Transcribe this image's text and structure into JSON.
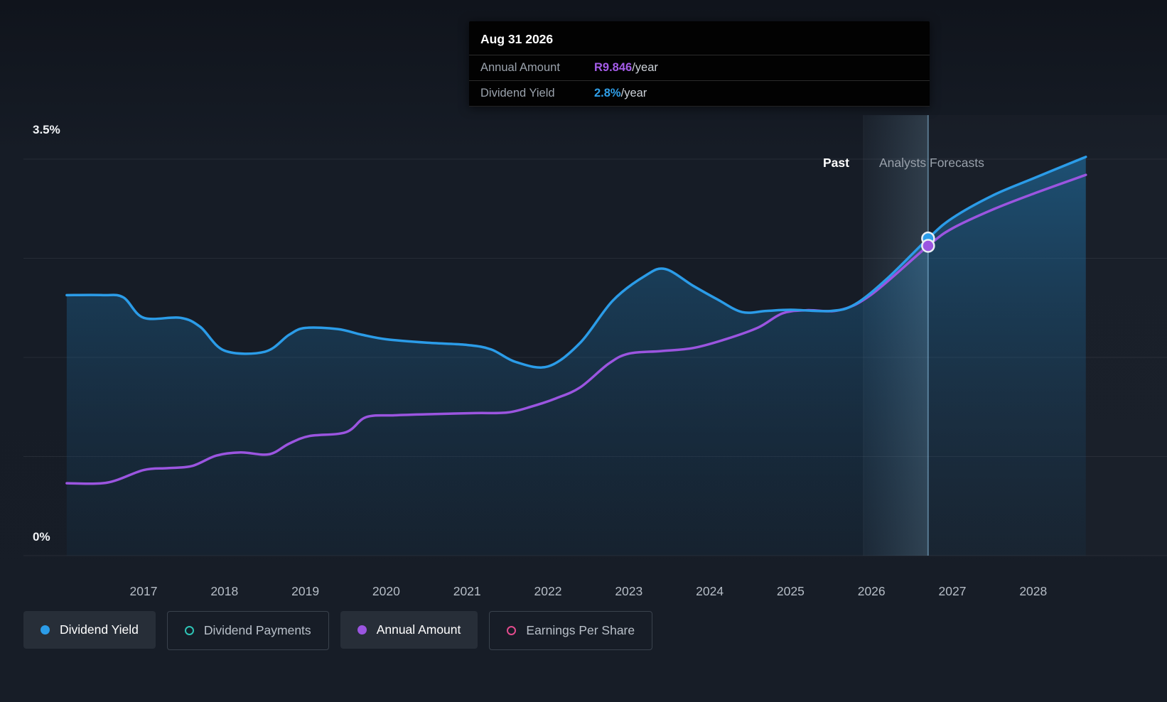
{
  "tooltip": {
    "date": "Aug 31 2026",
    "rows": [
      {
        "label": "Annual Amount",
        "value": "R9.846",
        "suffix": "/year",
        "color": "#a45ce8"
      },
      {
        "label": "Dividend Yield",
        "value": "2.8%",
        "suffix": "/year",
        "color": "#2f9fe8"
      }
    ]
  },
  "annotations": {
    "past": "Past",
    "forecast": "Analysts Forecasts"
  },
  "axes": {
    "y_top": "3.5%",
    "y_bottom": "0%"
  },
  "legend": [
    {
      "label": "Dividend Yield",
      "color": "#2b9ce8",
      "filled_marker": true,
      "filled_pill": true
    },
    {
      "label": "Dividend Payments",
      "color": "#2ec4b6",
      "filled_marker": false,
      "filled_pill": false
    },
    {
      "label": "Annual Amount",
      "color": "#9b55e0",
      "filled_marker": true,
      "filled_pill": true
    },
    {
      "label": "Earnings Per Share",
      "color": "#e24b8d",
      "filled_marker": false,
      "filled_pill": false
    }
  ],
  "chart_data": {
    "type": "line",
    "x_ticks": [
      2017,
      2018,
      2019,
      2020,
      2021,
      2022,
      2023,
      2024,
      2025,
      2026,
      2027,
      2028
    ],
    "ylim": [
      0,
      3.5
    ],
    "y2lim": [
      0,
      12.6
    ],
    "grid_ticks": [
      0,
      0.875,
      1.75,
      2.625,
      3.5
    ],
    "past_end_x": 2025.9,
    "marker_x": 2026.7,
    "series": [
      {
        "name": "Dividend Yield",
        "unit": "%",
        "axis": "y",
        "color": "#2b9ce8",
        "area": true,
        "points": [
          [
            2016.05,
            2.3
          ],
          [
            2016.5,
            2.3
          ],
          [
            2016.75,
            2.28
          ],
          [
            2017.0,
            2.1
          ],
          [
            2017.45,
            2.1
          ],
          [
            2017.7,
            2.02
          ],
          [
            2018.0,
            1.81
          ],
          [
            2018.5,
            1.8
          ],
          [
            2018.8,
            1.95
          ],
          [
            2019.0,
            2.01
          ],
          [
            2019.4,
            2.0
          ],
          [
            2019.7,
            1.95
          ],
          [
            2020.0,
            1.91
          ],
          [
            2020.5,
            1.88
          ],
          [
            2021.0,
            1.86
          ],
          [
            2021.3,
            1.82
          ],
          [
            2021.6,
            1.71
          ],
          [
            2022.0,
            1.67
          ],
          [
            2022.4,
            1.88
          ],
          [
            2022.8,
            2.25
          ],
          [
            2023.2,
            2.47
          ],
          [
            2023.45,
            2.53
          ],
          [
            2023.8,
            2.38
          ],
          [
            2024.1,
            2.26
          ],
          [
            2024.4,
            2.15
          ],
          [
            2024.7,
            2.16
          ],
          [
            2025.0,
            2.17
          ],
          [
            2025.5,
            2.16
          ],
          [
            2025.8,
            2.22
          ],
          [
            2026.2,
            2.45
          ],
          [
            2026.7,
            2.8
          ],
          [
            2027.0,
            2.98
          ],
          [
            2027.5,
            3.18
          ],
          [
            2028.0,
            3.33
          ],
          [
            2028.65,
            3.52
          ]
        ]
      },
      {
        "name": "Annual Amount",
        "unit": "R/year",
        "axis": "y2",
        "color": "#9b55e0",
        "area": false,
        "points": [
          [
            2016.05,
            2.3
          ],
          [
            2016.55,
            2.32
          ],
          [
            2017.0,
            2.72
          ],
          [
            2017.3,
            2.78
          ],
          [
            2017.6,
            2.85
          ],
          [
            2017.9,
            3.18
          ],
          [
            2018.2,
            3.28
          ],
          [
            2018.55,
            3.22
          ],
          [
            2018.8,
            3.56
          ],
          [
            2019.05,
            3.8
          ],
          [
            2019.5,
            3.92
          ],
          [
            2019.75,
            4.4
          ],
          [
            2020.1,
            4.46
          ],
          [
            2020.6,
            4.5
          ],
          [
            2021.1,
            4.53
          ],
          [
            2021.5,
            4.55
          ],
          [
            2021.8,
            4.74
          ],
          [
            2022.1,
            5.0
          ],
          [
            2022.4,
            5.35
          ],
          [
            2022.75,
            6.1
          ],
          [
            2023.0,
            6.42
          ],
          [
            2023.4,
            6.5
          ],
          [
            2023.8,
            6.6
          ],
          [
            2024.2,
            6.88
          ],
          [
            2024.6,
            7.25
          ],
          [
            2024.9,
            7.7
          ],
          [
            2025.2,
            7.8
          ],
          [
            2025.6,
            7.8
          ],
          [
            2026.0,
            8.3
          ],
          [
            2026.7,
            9.846
          ],
          [
            2027.0,
            10.4
          ],
          [
            2027.5,
            11.0
          ],
          [
            2028.0,
            11.5
          ],
          [
            2028.65,
            12.1
          ]
        ]
      }
    ],
    "markers": [
      {
        "x": 2026.7,
        "series": "Dividend Yield",
        "value": 2.8
      },
      {
        "x": 2026.7,
        "series": "Annual Amount",
        "value": 9.846
      }
    ]
  }
}
